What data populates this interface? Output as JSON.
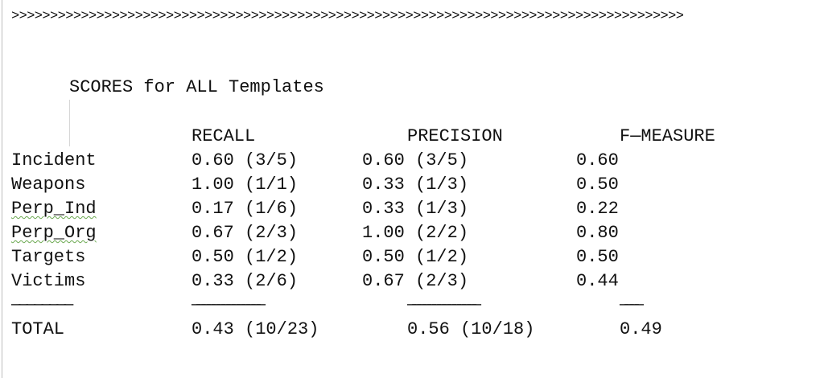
{
  "editor": {
    "separator_line": ">>>>>>>>>>>>>>>>>>>>>>>>>>>>>>>>>>>>>>>>>>>>>>>>>>>>>>>>>>>>>>>>>>>>>>>>>>>>>>>>>>>>>>>",
    "heading": "SCORES for ALL Templates",
    "columns": {
      "recall": "RECALL",
      "precision": "PRECISION",
      "fmeasure": "F—MEASURE"
    },
    "rows": [
      {
        "label": "Incident",
        "recall": "0.60 (3/5)",
        "precision": "0.60 (3/5)",
        "fmeasure": "0.60"
      },
      {
        "label": "Weapons",
        "recall": "1.00 (1/1)",
        "precision": "0.33 (1/3)",
        "fmeasure": "0.50"
      },
      {
        "label": "Perp_Ind",
        "recall": "0.17 (1/6)",
        "precision": "0.33 (1/3)",
        "fmeasure": "0.22"
      },
      {
        "label": "Perp_Org",
        "recall": "0.67 (2/3)",
        "precision": "1.00 (2/2)",
        "fmeasure": "0.80"
      },
      {
        "label": "Targets",
        "recall": "0.50 (1/2)",
        "precision": "0.50 (1/2)",
        "fmeasure": "0.50"
      },
      {
        "label": "Victims",
        "recall": "0.33 (2/6)",
        "precision": "0.67 (2/3)",
        "fmeasure": "0.44"
      }
    ],
    "rule_label": "————————",
    "rule_recall": "——————————————",
    "rule_precision": "——————————————",
    "rule_fmeasure": "————",
    "total": {
      "label": "TOTAL",
      "recall": "0.43 (10/23)",
      "precision": "0.56 (10/18)",
      "fmeasure": "0.49"
    }
  }
}
